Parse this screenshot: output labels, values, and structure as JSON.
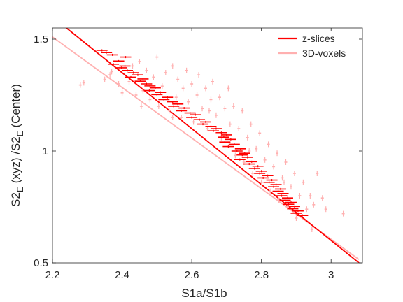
{
  "chart_data": {
    "type": "scatter",
    "title": "",
    "xlabel": "S1a/S1b",
    "ylabel": {
      "base": "S2",
      "sub": "E",
      "rest": " (xyz) /S2",
      "sub2": "E",
      "tail": " (Center)"
    },
    "xlim": [
      2.2,
      3.09
    ],
    "ylim": [
      0.5,
      1.55
    ],
    "xticks": [
      "2.2",
      "2.4",
      "2.6",
      "2.8",
      "3"
    ],
    "yticks": [
      "0.5",
      "1",
      "1.5"
    ],
    "xtick_values": [
      2.2,
      2.4,
      2.6,
      2.8,
      3.0
    ],
    "ytick_values": [
      0.5,
      1.0,
      1.5
    ],
    "grid": false,
    "legend_position": "top-right",
    "series": [
      {
        "name": "z-slices",
        "color": "#ff0000",
        "fit_line": {
          "x": [
            2.22,
            3.08
          ],
          "y": [
            1.575,
            0.5
          ]
        },
        "points": [
          [
            2.342,
            1.45
          ],
          [
            2.355,
            1.44
          ],
          [
            2.372,
            1.43
          ],
          [
            2.41,
            1.42
          ],
          [
            2.39,
            1.402
          ],
          [
            2.375,
            1.388
          ],
          [
            2.408,
            1.38
          ],
          [
            2.398,
            1.372
          ],
          [
            2.415,
            1.36
          ],
          [
            2.432,
            1.35
          ],
          [
            2.445,
            1.34
          ],
          [
            2.425,
            1.33
          ],
          [
            2.46,
            1.322
          ],
          [
            2.452,
            1.312
          ],
          [
            2.47,
            1.3
          ],
          [
            2.48,
            1.291
          ],
          [
            2.495,
            1.282
          ],
          [
            2.478,
            1.27
          ],
          [
            2.51,
            1.262
          ],
          [
            2.5,
            1.252
          ],
          [
            2.53,
            1.24
          ],
          [
            2.52,
            1.23
          ],
          [
            2.545,
            1.22
          ],
          [
            2.56,
            1.21
          ],
          [
            2.548,
            1.2
          ],
          [
            2.578,
            1.192
          ],
          [
            2.57,
            1.18
          ],
          [
            2.595,
            1.17
          ],
          [
            2.61,
            1.162
          ],
          [
            2.6,
            1.15
          ],
          [
            2.622,
            1.14
          ],
          [
            2.64,
            1.13
          ],
          [
            2.632,
            1.12
          ],
          [
            2.655,
            1.11
          ],
          [
            2.67,
            1.1
          ],
          [
            2.662,
            1.09
          ],
          [
            2.685,
            1.082
          ],
          [
            2.7,
            1.072
          ],
          [
            2.692,
            1.062
          ],
          [
            2.712,
            1.052
          ],
          [
            2.695,
            1.04
          ],
          [
            2.722,
            1.03
          ],
          [
            2.705,
            1.02
          ],
          [
            2.74,
            1.01
          ],
          [
            2.73,
            1.0
          ],
          [
            2.752,
            0.99
          ],
          [
            2.745,
            0.982
          ],
          [
            2.76,
            0.972
          ],
          [
            2.738,
            0.962
          ],
          [
            2.772,
            0.952
          ],
          [
            2.765,
            0.942
          ],
          [
            2.79,
            0.932
          ],
          [
            2.78,
            0.922
          ],
          [
            2.8,
            0.91
          ],
          [
            2.795,
            0.9
          ],
          [
            2.818,
            0.89
          ],
          [
            2.805,
            0.88
          ],
          [
            2.83,
            0.87
          ],
          [
            2.822,
            0.86
          ],
          [
            2.842,
            0.85
          ],
          [
            2.835,
            0.84
          ],
          [
            2.855,
            0.83
          ],
          [
            2.848,
            0.82
          ],
          [
            2.862,
            0.81
          ],
          [
            2.858,
            0.8
          ],
          [
            2.875,
            0.79
          ],
          [
            2.868,
            0.78
          ],
          [
            2.885,
            0.77
          ],
          [
            2.878,
            0.762
          ],
          [
            2.895,
            0.752
          ],
          [
            2.89,
            0.742
          ],
          [
            2.905,
            0.732
          ],
          [
            2.9,
            0.722
          ],
          [
            2.918,
            0.712
          ]
        ]
      },
      {
        "name": "3D-voxels",
        "color": "#ffb0b0",
        "fit_line": {
          "x": [
            2.2,
            3.08
          ],
          "y": [
            1.51,
            0.515
          ]
        },
        "points": [
          [
            2.29,
            1.305
          ],
          [
            2.35,
            1.32
          ],
          [
            2.37,
            1.355
          ],
          [
            2.39,
            1.3
          ],
          [
            2.4,
            1.26
          ],
          [
            2.42,
            1.31
          ],
          [
            2.43,
            1.38
          ],
          [
            2.44,
            1.25
          ],
          [
            2.45,
            1.4
          ],
          [
            2.46,
            1.27
          ],
          [
            2.47,
            1.36
          ],
          [
            2.48,
            1.23
          ],
          [
            2.49,
            1.33
          ],
          [
            2.5,
            1.42
          ],
          [
            2.505,
            1.2
          ],
          [
            2.515,
            1.29
          ],
          [
            2.525,
            1.35
          ],
          [
            2.535,
            1.18
          ],
          [
            2.545,
            1.38
          ],
          [
            2.555,
            1.24
          ],
          [
            2.56,
            1.32
          ],
          [
            2.57,
            1.15
          ],
          [
            2.575,
            1.28
          ],
          [
            2.585,
            1.36
          ],
          [
            2.59,
            1.22
          ],
          [
            2.6,
            1.3
          ],
          [
            2.605,
            1.13
          ],
          [
            2.615,
            1.25
          ],
          [
            2.62,
            1.34
          ],
          [
            2.63,
            1.19
          ],
          [
            2.64,
            1.28
          ],
          [
            2.645,
            1.1
          ],
          [
            2.655,
            1.23
          ],
          [
            2.66,
            1.31
          ],
          [
            2.67,
            1.16
          ],
          [
            2.68,
            1.24
          ],
          [
            2.685,
            1.06
          ],
          [
            2.695,
            1.19
          ],
          [
            2.705,
            1.28
          ],
          [
            2.71,
            1.12
          ],
          [
            2.72,
            1.2
          ],
          [
            2.725,
            0.98
          ],
          [
            2.735,
            1.1
          ],
          [
            2.745,
            1.18
          ],
          [
            2.75,
            0.95
          ],
          [
            2.76,
            1.06
          ],
          [
            2.77,
            1.12
          ],
          [
            2.775,
            0.9
          ],
          [
            2.785,
            1.01
          ],
          [
            2.795,
            1.08
          ],
          [
            2.8,
            0.86
          ],
          [
            2.81,
            0.96
          ],
          [
            2.82,
            1.03
          ],
          [
            2.825,
            0.82
          ],
          [
            2.835,
            0.93
          ],
          [
            2.845,
            0.99
          ],
          [
            2.85,
            0.78
          ],
          [
            2.86,
            0.88
          ],
          [
            2.87,
            0.95
          ],
          [
            2.875,
            0.75
          ],
          [
            2.885,
            0.84
          ],
          [
            2.895,
            0.9
          ],
          [
            2.9,
            0.7
          ],
          [
            2.91,
            0.8
          ],
          [
            2.92,
            0.86
          ],
          [
            2.93,
            0.74
          ],
          [
            2.94,
            0.8
          ],
          [
            2.95,
            0.76
          ],
          [
            2.96,
            0.9
          ],
          [
            2.975,
            0.79
          ],
          [
            3.035,
            0.72
          ],
          [
            2.28,
            1.295
          ],
          [
            2.365,
            1.34
          ],
          [
            2.455,
            1.2
          ],
          [
            2.545,
            1.15
          ],
          [
            2.65,
            1.18
          ],
          [
            2.765,
            1.0
          ],
          [
            2.865,
            0.86
          ],
          [
            2.945,
            0.65
          ],
          [
            2.985,
            0.74
          ]
        ]
      }
    ]
  }
}
